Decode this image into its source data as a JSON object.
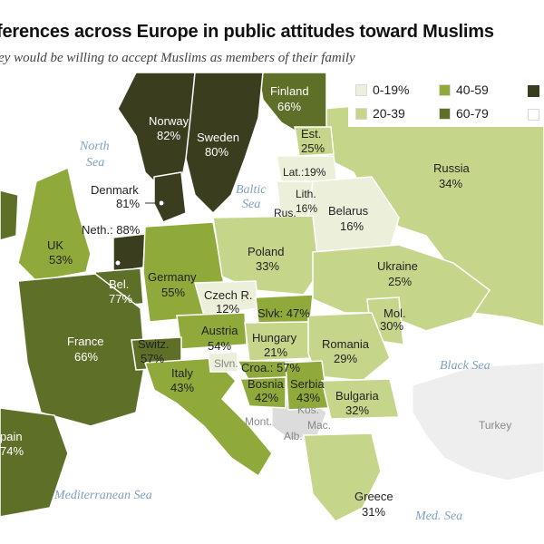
{
  "title": "ferences across Europe in public attitudes toward Muslims",
  "subtitle": "ey would be willing to accept Muslims as members of their family",
  "legend": {
    "items": [
      {
        "label": "0-19%",
        "color": "#ecefd9"
      },
      {
        "label": "40-59",
        "color": "#8faa3b"
      },
      {
        "label": "20-39",
        "color": "#c5d68a"
      },
      {
        "label": "60-79",
        "color": "#5e7027"
      }
    ],
    "cut_off_colors": [
      "#3a3e1f",
      "#ffffff"
    ]
  },
  "seas": {
    "north": "North",
    "north2": "Sea",
    "baltic": "Baltic",
    "baltic2": "Sea",
    "black": "Black Sea",
    "med": "Mediterranean Sea",
    "med_short": "Med. Sea"
  },
  "countries": {
    "finland": {
      "name": "Finland",
      "value": "66%"
    },
    "norway": {
      "name": "Norway",
      "value": "82%"
    },
    "sweden": {
      "name": "Sweden",
      "value": "80%"
    },
    "estonia": {
      "name": "Est.",
      "value": "25%"
    },
    "latvia": {
      "name": "Lat.:19%"
    },
    "lithuania": {
      "name": "Lith.",
      "value": "16%"
    },
    "russia_kal": {
      "name": "Rus."
    },
    "denmark": {
      "name": "Denmark",
      "value": "81%"
    },
    "russia": {
      "name": "Russia",
      "value": "34%"
    },
    "belarus": {
      "name": "Belarus",
      "value": "16%"
    },
    "uk": {
      "name": "UK",
      "value": "53%"
    },
    "netherlands": {
      "name": "Neth.: 88%"
    },
    "belgium": {
      "name": "Bel.",
      "value": "77%"
    },
    "germany": {
      "name": "Germany",
      "value": "55%"
    },
    "poland": {
      "name": "Poland",
      "value": "33%"
    },
    "ukraine": {
      "name": "Ukraine",
      "value": "25%"
    },
    "czech": {
      "name": "Czech R.",
      "value": "12%"
    },
    "slovakia": {
      "name": "Slvk: 47%"
    },
    "austria": {
      "name": "Austria",
      "value": "54%"
    },
    "hungary": {
      "name": "Hungary",
      "value": "21%"
    },
    "moldova": {
      "name": "Mol.",
      "value": "30%"
    },
    "romania": {
      "name": "Romania",
      "value": "29%"
    },
    "france": {
      "name": "France",
      "value": "66%"
    },
    "switzerland": {
      "name": "Switz.",
      "value": "57%"
    },
    "slovenia": {
      "name": "Slvn."
    },
    "croatia": {
      "name": "Croa.: 57%"
    },
    "bosnia": {
      "name": "Bosnia",
      "value": "42%"
    },
    "serbia": {
      "name": "Serbia",
      "value": "43%"
    },
    "italy": {
      "name": "Italy",
      "value": "43%"
    },
    "bulgaria": {
      "name": "Bulgaria",
      "value": "32%"
    },
    "montenegro": {
      "name": "Mont."
    },
    "kosovo": {
      "name": "Kos."
    },
    "macedonia": {
      "name": "Mac."
    },
    "albania": {
      "name": "Alb."
    },
    "turkey": {
      "name": "Turkey"
    },
    "spain": {
      "name": "pain",
      "value": "74%"
    },
    "greece": {
      "name": "Greece",
      "value": "31%"
    }
  }
}
